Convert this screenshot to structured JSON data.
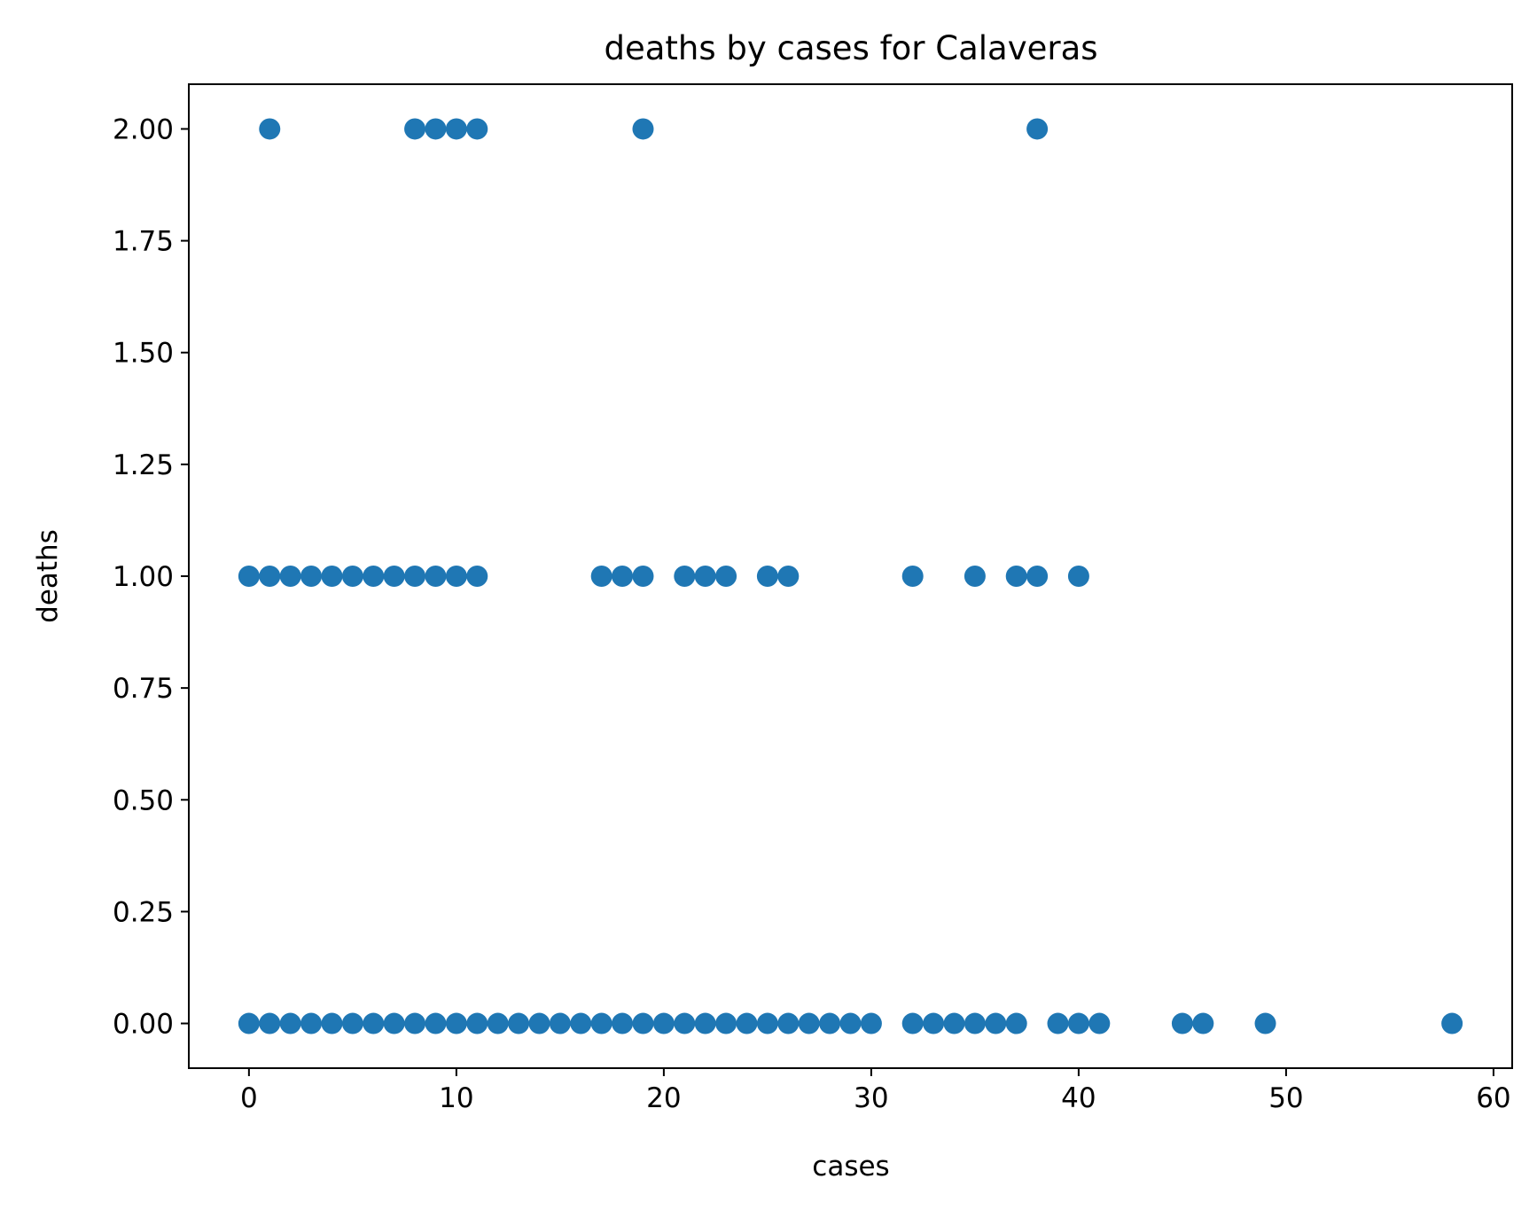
{
  "chart_data": {
    "type": "scatter",
    "title": "deaths by cases for Calaveras",
    "xlabel": "cases",
    "ylabel": "deaths",
    "xlim": [
      -2.9,
      60.9
    ],
    "ylim": [
      -0.1,
      2.1
    ],
    "xticks": [
      0,
      10,
      20,
      30,
      40,
      50,
      60
    ],
    "xtick_labels": [
      "0",
      "10",
      "20",
      "30",
      "40",
      "50",
      "60"
    ],
    "yticks": [
      0,
      0.25,
      0.5,
      0.75,
      1.0,
      1.25,
      1.5,
      1.75,
      2.0
    ],
    "ytick_labels": [
      "0.00",
      "0.25",
      "0.50",
      "0.75",
      "1.00",
      "1.25",
      "1.50",
      "1.75",
      "2.00"
    ],
    "grid": false,
    "color": "#1f77b4",
    "points": [
      [
        0,
        0
      ],
      [
        1,
        0
      ],
      [
        2,
        0
      ],
      [
        3,
        0
      ],
      [
        4,
        0
      ],
      [
        5,
        0
      ],
      [
        6,
        0
      ],
      [
        7,
        0
      ],
      [
        8,
        0
      ],
      [
        9,
        0
      ],
      [
        10,
        0
      ],
      [
        11,
        0
      ],
      [
        12,
        0
      ],
      [
        13,
        0
      ],
      [
        14,
        0
      ],
      [
        15,
        0
      ],
      [
        16,
        0
      ],
      [
        17,
        0
      ],
      [
        18,
        0
      ],
      [
        19,
        0
      ],
      [
        20,
        0
      ],
      [
        21,
        0
      ],
      [
        22,
        0
      ],
      [
        23,
        0
      ],
      [
        24,
        0
      ],
      [
        25,
        0
      ],
      [
        26,
        0
      ],
      [
        27,
        0
      ],
      [
        28,
        0
      ],
      [
        29,
        0
      ],
      [
        30,
        0
      ],
      [
        32,
        0
      ],
      [
        33,
        0
      ],
      [
        34,
        0
      ],
      [
        35,
        0
      ],
      [
        36,
        0
      ],
      [
        37,
        0
      ],
      [
        39,
        0
      ],
      [
        40,
        0
      ],
      [
        41,
        0
      ],
      [
        45,
        0
      ],
      [
        46,
        0
      ],
      [
        49,
        0
      ],
      [
        58,
        0
      ],
      [
        0,
        1
      ],
      [
        1,
        1
      ],
      [
        2,
        1
      ],
      [
        3,
        1
      ],
      [
        4,
        1
      ],
      [
        5,
        1
      ],
      [
        6,
        1
      ],
      [
        7,
        1
      ],
      [
        8,
        1
      ],
      [
        9,
        1
      ],
      [
        10,
        1
      ],
      [
        11,
        1
      ],
      [
        17,
        1
      ],
      [
        18,
        1
      ],
      [
        19,
        1
      ],
      [
        21,
        1
      ],
      [
        22,
        1
      ],
      [
        23,
        1
      ],
      [
        25,
        1
      ],
      [
        26,
        1
      ],
      [
        32,
        1
      ],
      [
        35,
        1
      ],
      [
        37,
        1
      ],
      [
        38,
        1
      ],
      [
        40,
        1
      ],
      [
        1,
        2
      ],
      [
        8,
        2
      ],
      [
        9,
        2
      ],
      [
        10,
        2
      ],
      [
        11,
        2
      ],
      [
        19,
        2
      ],
      [
        38,
        2
      ]
    ]
  }
}
